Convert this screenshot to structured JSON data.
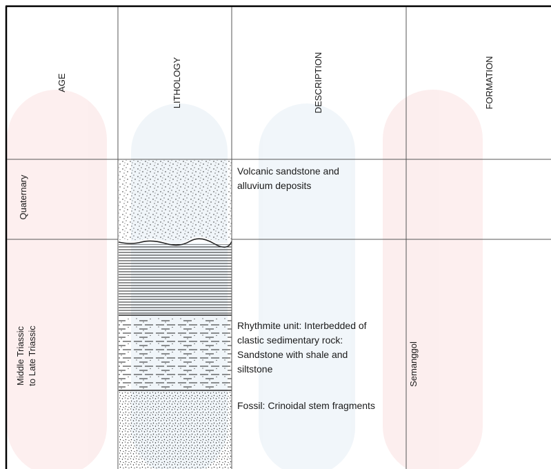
{
  "headers": {
    "age": "AGE",
    "lithology": "LITHOLOGY",
    "description": "DESCRIPTION",
    "formation": "FORMATION"
  },
  "rows": [
    {
      "age": [
        "Quaternary"
      ],
      "description": [
        "Volcanic sandstone and",
        "alluvium deposits"
      ],
      "formation": "",
      "lithology": [
        "sandstone"
      ]
    },
    {
      "age": [
        "Middle Triassic",
        "to Late Triassic"
      ],
      "description": [
        "Rhythmite unit: Interbedded of",
        "clastic sedimentary rock:",
        "Sandstone with shale and",
        "siltstone"
      ],
      "fossil": "Fossil: Crinoidal stem fragments",
      "formation": "Semanggol",
      "lithology": [
        "shale",
        "siltstone",
        "sandstone"
      ]
    }
  ]
}
